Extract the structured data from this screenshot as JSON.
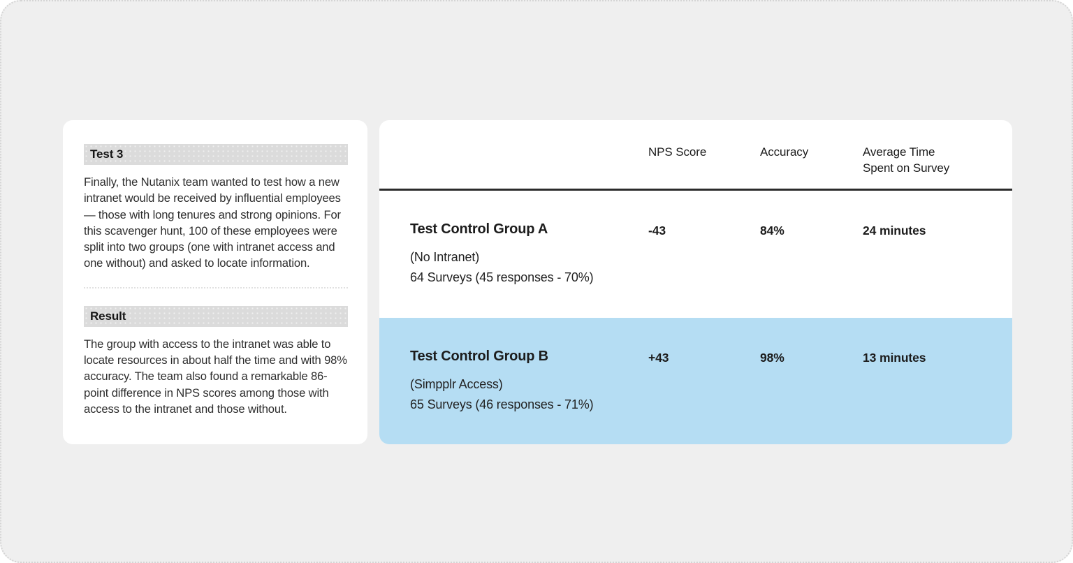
{
  "theme": {
    "page_bg": "#efefef",
    "card_bg": "#ffffff",
    "highlight_bg": "#b5ddf3",
    "heading_bar_bg": "#dbdbdb",
    "rule_color": "#2b2b2b"
  },
  "summary": {
    "sections": [
      {
        "heading": "Test 3",
        "body": "Finally, the Nutanix team wanted to test how a new intranet would be received by influential employees — those with long tenures and strong opinions. For this scavenger hunt, 100 of these employees were split into two groups (one with intranet access and one without) and asked to locate information."
      },
      {
        "heading": "Result",
        "body": "The group with access to the intranet was able to locate resources in about half the time and with 98% accuracy. The team also found a remarkable 86-point difference in NPS scores among those with access to the intranet and those without."
      }
    ]
  },
  "table": {
    "headers": {
      "group": "",
      "nps": "NPS Score",
      "accuracy": "Accuracy",
      "avg_time": "Average Time Spent on Survey"
    },
    "rows": [
      {
        "name": "Test Control Group A",
        "subtitle": "(No Intranet)",
        "detail": "64 Surveys (45 responses - 70%)",
        "nps": "-43",
        "accuracy": "84%",
        "avg_time": "24 minutes"
      },
      {
        "name": "Test Control Group B",
        "subtitle": "(Simpplr Access)",
        "detail": "65 Surveys (46 responses - 71%)",
        "nps": "+43",
        "accuracy": "98%",
        "avg_time": "13 minutes"
      }
    ]
  }
}
